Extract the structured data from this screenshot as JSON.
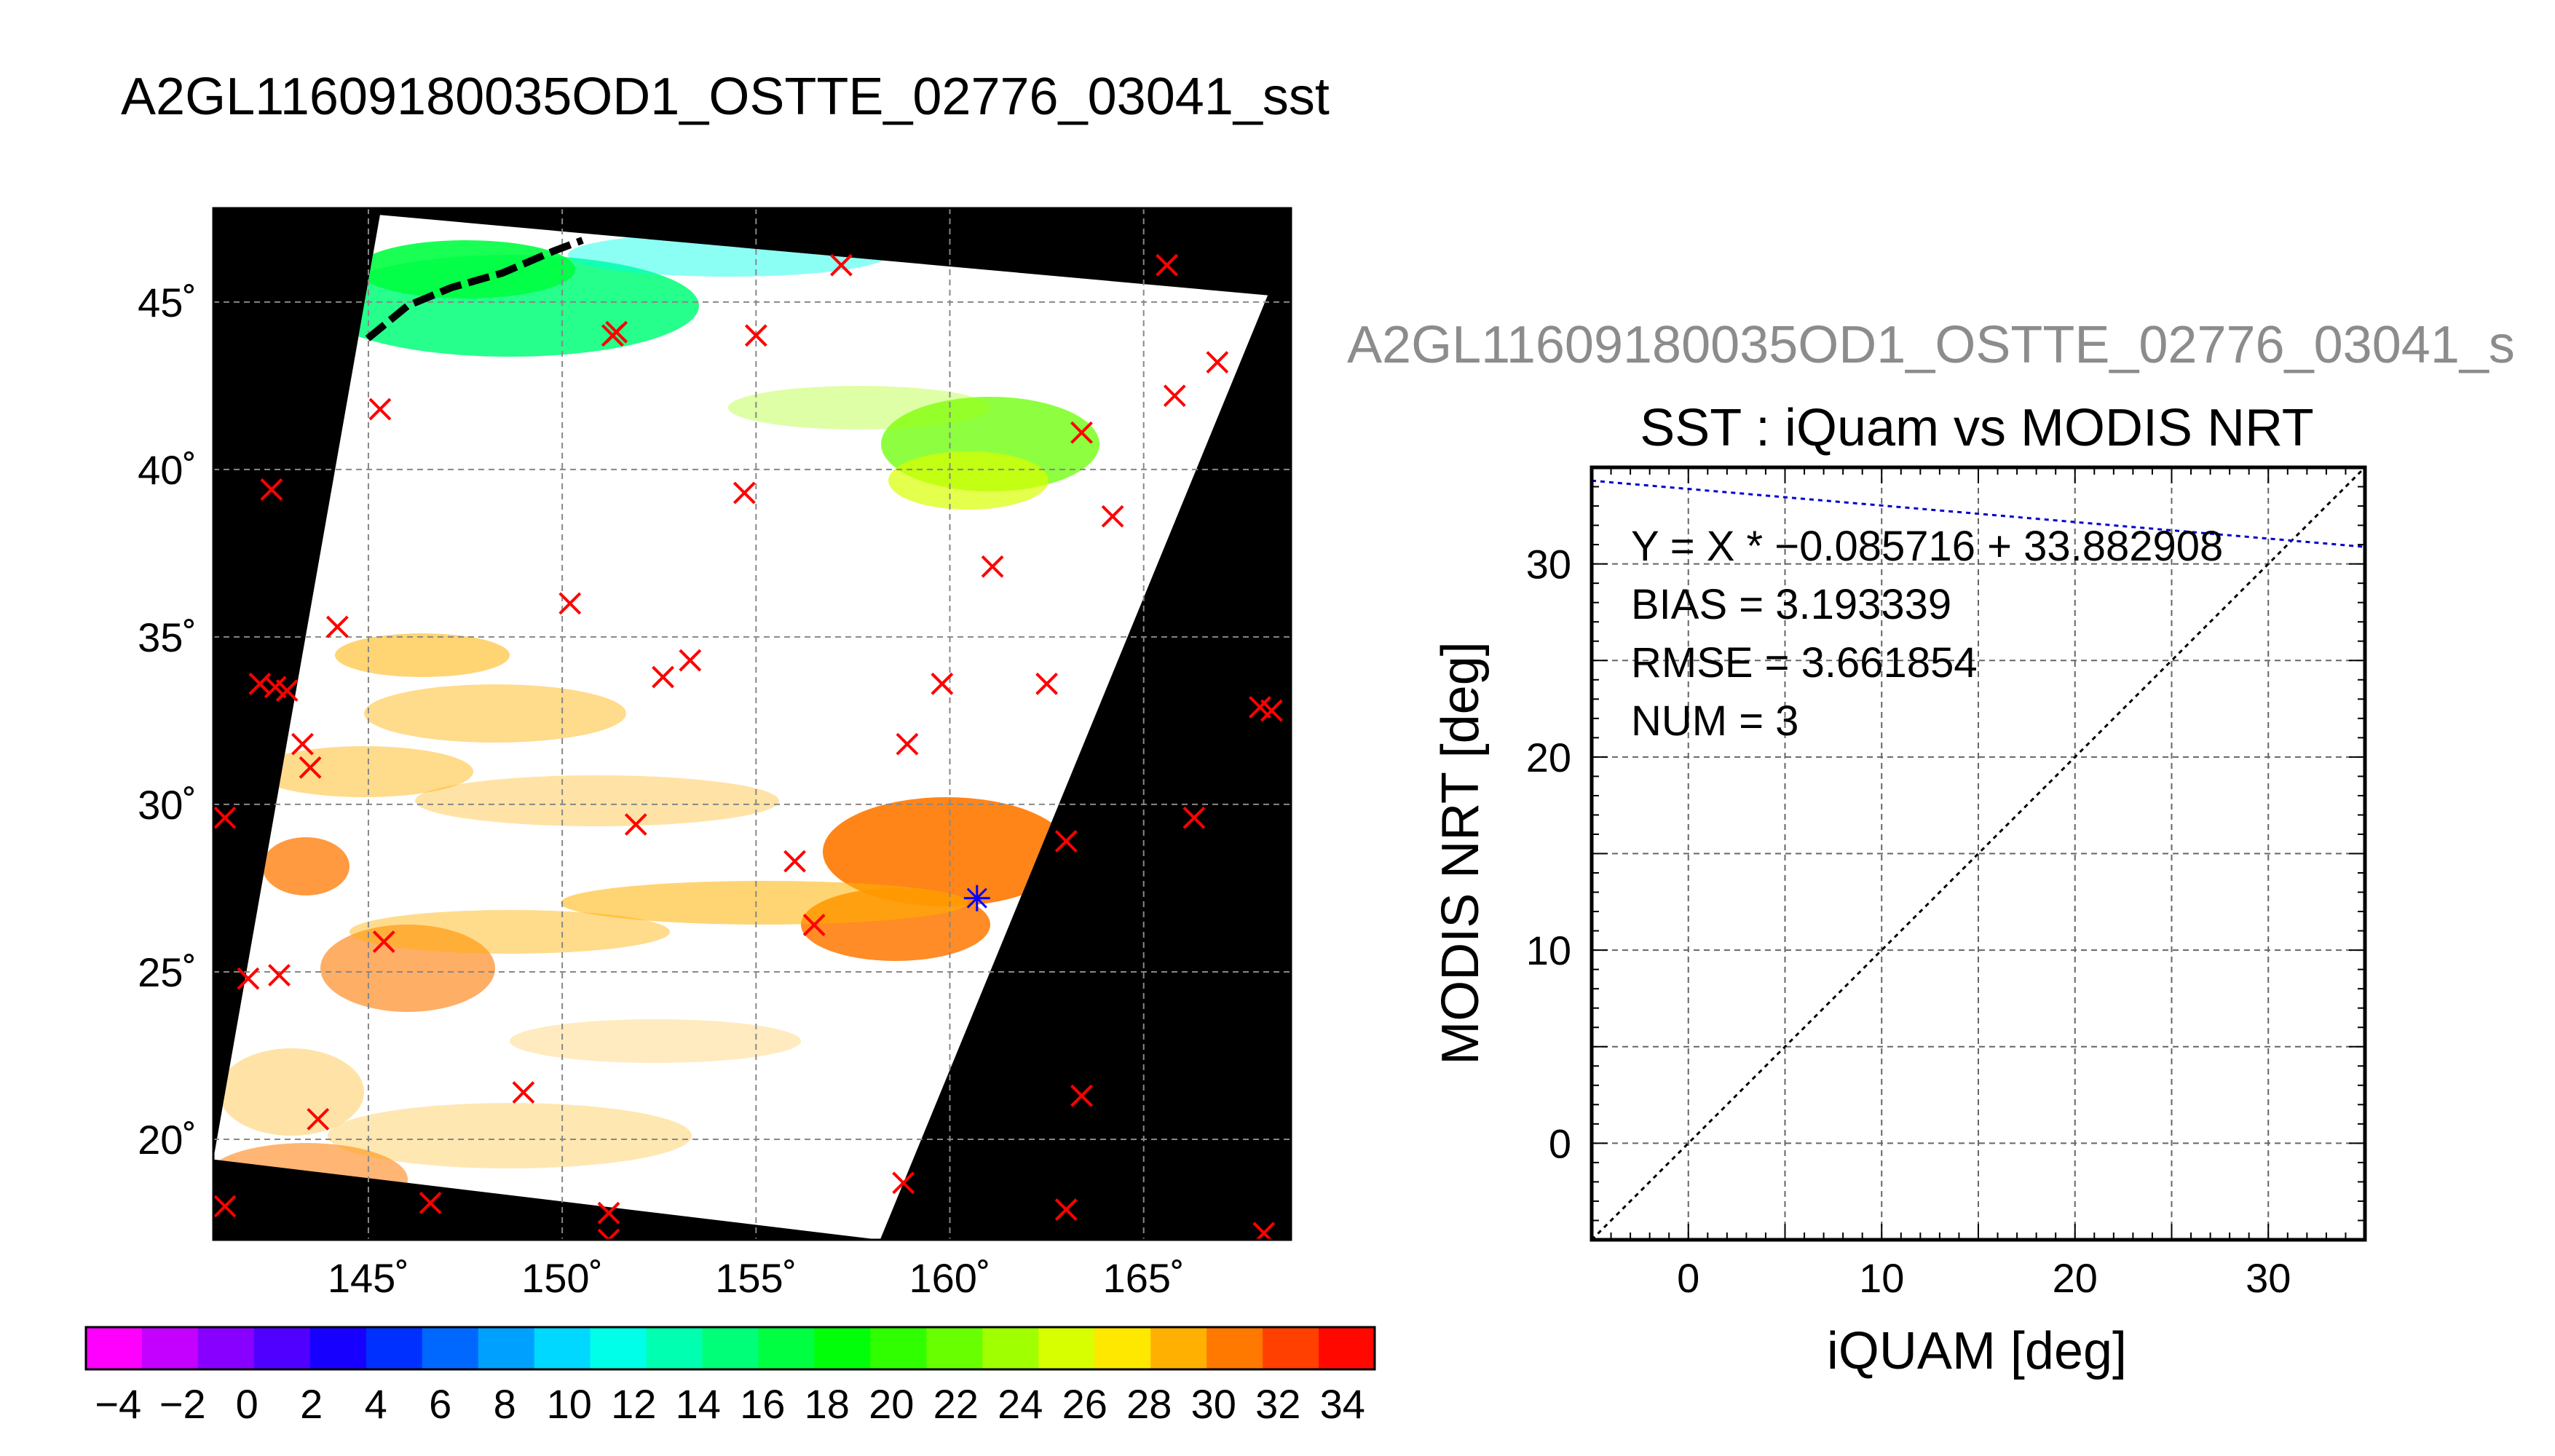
{
  "title": "A2GL11609180035OD1_OSTTE_02776_03041_sst",
  "map": {
    "lon_min": 141.0,
    "lon_max": 168.8,
    "lat_min": 17.0,
    "lat_max": 47.8,
    "lat_ticks": [
      {
        "value": 45,
        "label": "45˚"
      },
      {
        "value": 40,
        "label": "40˚"
      },
      {
        "value": 35,
        "label": "35˚"
      },
      {
        "value": 30,
        "label": "30˚"
      },
      {
        "value": 25,
        "label": "25˚"
      },
      {
        "value": 20,
        "label": "20˚"
      }
    ],
    "lon_ticks": [
      {
        "value": 145,
        "label": "145˚"
      },
      {
        "value": 150,
        "label": "150˚"
      },
      {
        "value": 155,
        "label": "155˚"
      },
      {
        "value": 160,
        "label": "160˚"
      },
      {
        "value": 165,
        "label": "165˚"
      }
    ],
    "swath_corners": [
      [
        145.3,
        47.6
      ],
      [
        168.2,
        45.2
      ],
      [
        158.2,
        17.0
      ],
      [
        141.0,
        19.4
      ]
    ],
    "markers": [
      [
        157.2,
        46.1
      ],
      [
        165.6,
        46.1
      ],
      [
        151.4,
        44.1
      ],
      [
        151.3,
        44.0
      ],
      [
        155.0,
        44.0
      ],
      [
        145.3,
        41.8
      ],
      [
        166.9,
        43.2
      ],
      [
        165.8,
        42.2
      ],
      [
        163.4,
        41.1
      ],
      [
        142.5,
        39.4
      ],
      [
        154.7,
        39.3
      ],
      [
        164.2,
        38.6
      ],
      [
        161.1,
        37.1
      ],
      [
        150.2,
        36.0
      ],
      [
        144.2,
        35.3
      ],
      [
        153.3,
        34.3
      ],
      [
        152.6,
        33.8
      ],
      [
        142.2,
        33.6
      ],
      [
        142.6,
        33.5
      ],
      [
        142.9,
        33.4
      ],
      [
        159.8,
        33.6
      ],
      [
        162.5,
        33.6
      ],
      [
        168.0,
        32.9
      ],
      [
        168.3,
        32.8
      ],
      [
        143.3,
        31.8
      ],
      [
        143.5,
        31.1
      ],
      [
        158.9,
        31.8
      ],
      [
        141.3,
        29.6
      ],
      [
        151.9,
        29.4
      ],
      [
        166.3,
        29.6
      ],
      [
        163.0,
        28.9
      ],
      [
        156.0,
        28.3
      ],
      [
        156.5,
        26.4
      ],
      [
        145.4,
        25.9
      ],
      [
        141.9,
        24.8
      ],
      [
        142.7,
        24.9
      ],
      [
        143.7,
        20.6
      ],
      [
        149.0,
        21.4
      ],
      [
        163.4,
        21.3
      ],
      [
        146.6,
        18.1
      ],
      [
        151.2,
        17.8
      ],
      [
        141.3,
        18.0
      ],
      [
        158.8,
        18.7
      ],
      [
        163.0,
        17.9
      ],
      [
        168.1,
        17.2
      ],
      [
        151.2,
        17.0
      ]
    ],
    "blue_marker": [
      160.7,
      27.2
    ],
    "colors": {
      "marker": "#ff0000",
      "blue_marker": "#0000ff",
      "background": "#000000"
    }
  },
  "colorbar": {
    "min": -5,
    "max": 35,
    "colors": [
      "#ff00ff",
      "#c400ff",
      "#8800ff",
      "#5000ff",
      "#1800ff",
      "#0030ff",
      "#0068ff",
      "#00a0ff",
      "#00d8ff",
      "#00ffe8",
      "#00ffb0",
      "#00ff78",
      "#00ff40",
      "#00ff08",
      "#30ff00",
      "#68ff00",
      "#a0ff00",
      "#d8ff00",
      "#ffe800",
      "#ffb000",
      "#ff7800",
      "#ff4000",
      "#ff0800"
    ],
    "tick_labels": [
      "−4",
      "−2",
      "0",
      "2",
      "4",
      "6",
      "8",
      "10",
      "12",
      "14",
      "16",
      "18",
      "20",
      "22",
      "24",
      "26",
      "28",
      "30",
      "32",
      "34"
    ]
  },
  "scatter": {
    "sub_title": "A2GL11609180035OD1_OSTTE_02776_03041_s",
    "plot_title": "SST : iQuam vs MODIS NRT",
    "xlabel": "iQUAM [deg]",
    "ylabel": "MODIS NRT [deg]",
    "xlim": [
      -5,
      35
    ],
    "ylim": [
      -5,
      35
    ],
    "x_ticks": [
      0,
      10,
      20,
      30
    ],
    "y_ticks": [
      0,
      10,
      20,
      30
    ],
    "stats": [
      "Y = X * −0.085716 + 33.882908",
      "BIAS = 3.193339",
      "RMSE = 3.661854",
      "NUM = 3"
    ],
    "fit": {
      "slope": -0.085716,
      "intercept": 33.882908
    },
    "colors": {
      "fit_line": "#0000cc",
      "identity_line": "#000000",
      "grid": "#666666"
    }
  }
}
